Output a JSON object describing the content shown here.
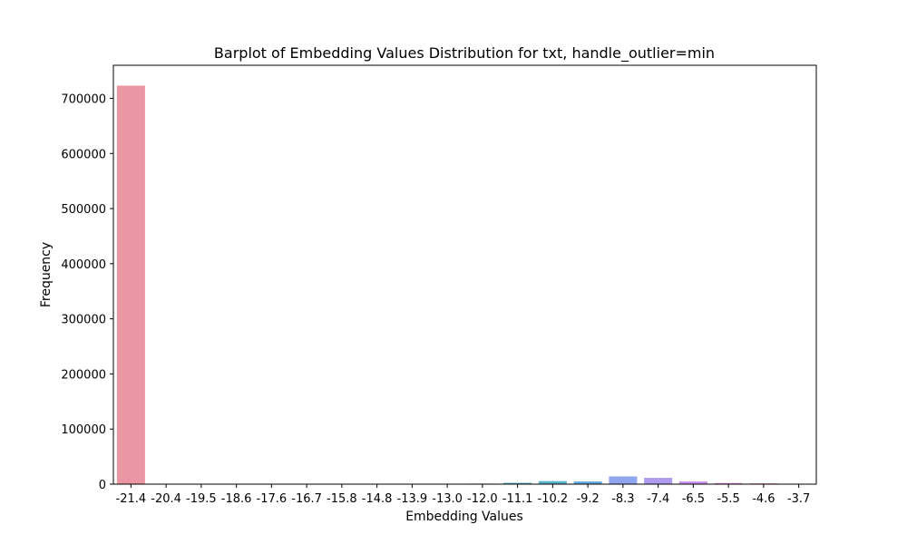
{
  "chart_data": {
    "type": "bar",
    "title": "Barplot of Embedding Values Distribution for txt, handle_outlier=min",
    "xlabel": "Embedding Values",
    "ylabel": "Frequency",
    "ylim": [
      0,
      760000
    ],
    "yticks": [
      0,
      100000,
      200000,
      300000,
      400000,
      500000,
      600000,
      700000
    ],
    "grid": false,
    "categories": [
      "-21.4",
      "-20.4",
      "-19.5",
      "-18.6",
      "-17.6",
      "-16.7",
      "-15.8",
      "-14.8",
      "-13.9",
      "-13.0",
      "-12.0",
      "-11.1",
      "-10.2",
      "-9.2",
      "-8.3",
      "-7.4",
      "-6.5",
      "-5.5",
      "-4.6",
      "-3.7"
    ],
    "values": [
      723000,
      100,
      100,
      100,
      100,
      100,
      100,
      200,
      300,
      500,
      1000,
      2500,
      5500,
      5000,
      14000,
      11500,
      5000,
      2000,
      1500,
      300
    ],
    "colors": [
      "#ea96a3",
      "#e6987a",
      "#d3a04e",
      "#c4a54a",
      "#b5a94a",
      "#a3ad4a",
      "#8cb14b",
      "#6cb758",
      "#54b882",
      "#54b59b",
      "#55b3ac",
      "#57b1bb",
      "#5aafcb",
      "#67aae0",
      "#8fa5ee",
      "#b09bf0",
      "#cd92ea",
      "#e18ad9",
      "#e78fbe",
      "#eb94b0"
    ]
  }
}
